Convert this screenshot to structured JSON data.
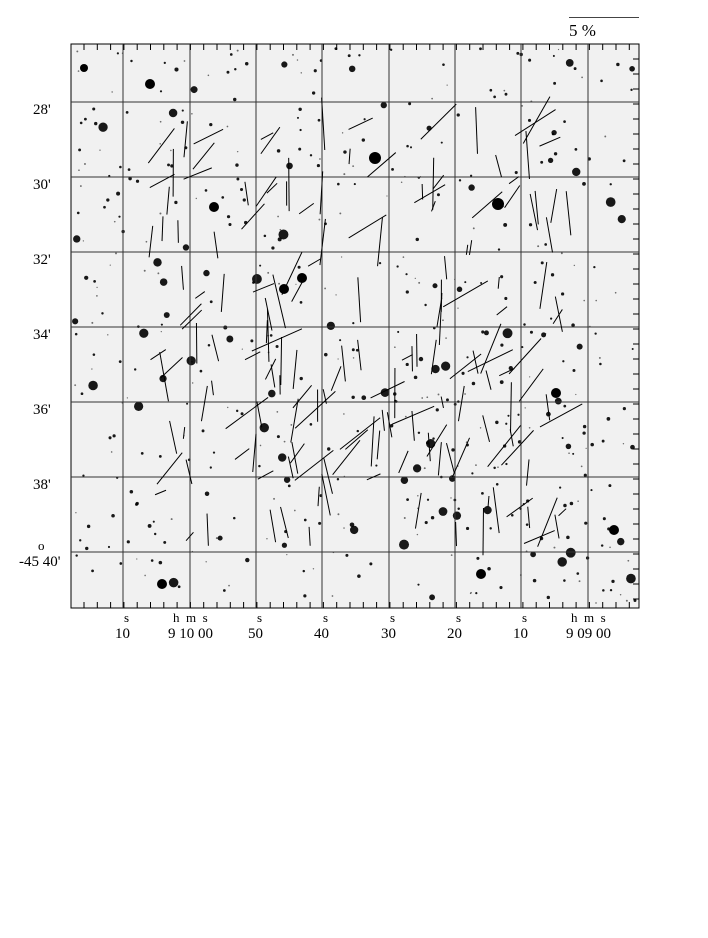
{
  "scale_bar": {
    "label": "5 %"
  },
  "dec_labels": [
    "28'",
    "30'",
    "32'",
    "34'",
    "36'",
    "38'",
    "-45 40'"
  ],
  "dec_degree_sup": "o",
  "ra_labels": [
    {
      "sup": "s",
      "main": "10"
    },
    {
      "sup": "h  m  s",
      "main": "9 10 00"
    },
    {
      "sup": "s",
      "main": "50"
    },
    {
      "sup": "s",
      "main": "40"
    },
    {
      "sup": "s",
      "main": "30"
    },
    {
      "sup": "s",
      "main": "20"
    },
    {
      "sup": "s",
      "main": "10"
    },
    {
      "sup": "h  m  s",
      "main": "9 09 00"
    }
  ],
  "colors": {
    "background": "#f1f1f1",
    "grid": "#000000",
    "stars": "#000000",
    "vectors": "#000000"
  }
}
